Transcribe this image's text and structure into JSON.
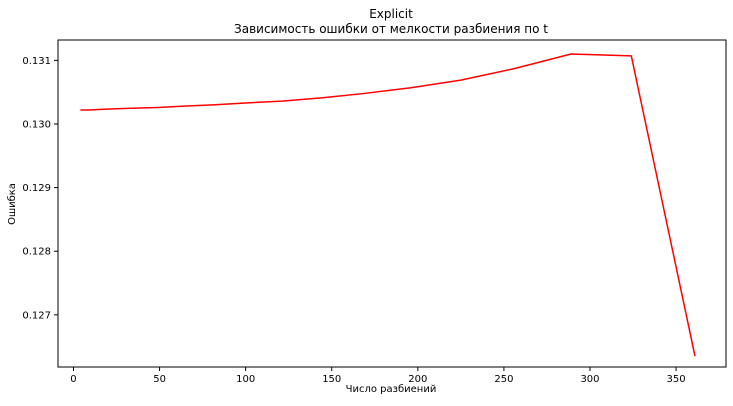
{
  "chart_data": {
    "type": "line",
    "title": "Explicit",
    "subtitle": "Зависимость ошибки от мелкости разбиения по t",
    "xlabel": "Число разбиений",
    "ylabel": "Ошибка",
    "xlim": [
      -9,
      379
    ],
    "ylim": [
      0.12618,
      0.13132
    ],
    "xticks": [
      0,
      50,
      100,
      150,
      200,
      250,
      300,
      350
    ],
    "yticks": [
      0.127,
      0.128,
      0.129,
      0.13,
      0.131
    ],
    "ytick_labels": [
      "0.127",
      "0.128",
      "0.129",
      "0.130",
      "0.131"
    ],
    "grid": false,
    "series": [
      {
        "color": "#ff0000",
        "x": [
          4,
          9,
          16,
          25,
          36,
          49,
          64,
          81,
          100,
          121,
          144,
          169,
          196,
          225,
          256,
          289,
          324,
          361
        ],
        "y": [
          0.13022,
          0.13022,
          0.13023,
          0.13024,
          0.13025,
          0.13026,
          0.13028,
          0.1303,
          0.13033,
          0.13036,
          0.13041,
          0.13048,
          0.13057,
          0.13069,
          0.13087,
          0.1311,
          0.13107,
          0.12635
        ]
      }
    ]
  }
}
